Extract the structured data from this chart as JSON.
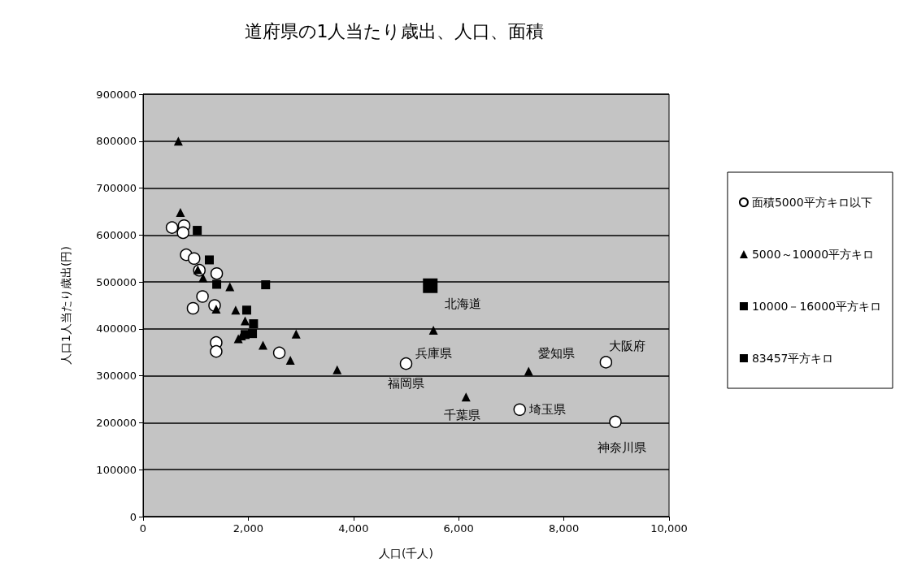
{
  "chart_data": {
    "type": "scatter",
    "title": "道府県の1人当たり歳出、人口、面積",
    "xlabel": "人口(千人)",
    "ylabel": "人口1人当たり歳出(円)",
    "xlim": [
      0,
      10000
    ],
    "xticks": [
      0,
      {
        "value": 2000,
        "label": "2,000"
      },
      {
        "value": 4000,
        "label": "4,000"
      },
      {
        "value": 6000,
        "label": "6,000"
      },
      {
        "value": 8000,
        "label": "8,000"
      },
      {
        "value": 10000,
        "label": "10,000"
      }
    ],
    "ylim": [
      0,
      900000
    ],
    "yticks": [
      0,
      100000,
      200000,
      300000,
      400000,
      500000,
      600000,
      700000,
      800000,
      900000
    ],
    "grid": "y",
    "legend": "right",
    "series": [
      {
        "name": "面積5000平方キロ以下",
        "color": "#ffffff",
        "marker": "circle",
        "x": [
          550,
          780,
          760,
          820,
          970,
          1070,
          1400,
          1390,
          1130,
          950,
          1360,
          1390,
          1390,
          2590,
          5000,
          8800,
          7160,
          8980
        ],
        "values": [
          616000,
          620000,
          605000,
          558000,
          550000,
          525000,
          518000,
          null,
          469000,
          444000,
          450000,
          371000,
          352000,
          349000,
          326000,
          329000,
          228000,
          202000
        ]
      },
      {
        "name": "5000～10000平方キロ",
        "color": "#000000",
        "marker": "triangle",
        "x": [
          670,
          710,
          1040,
          1140,
          1650,
          1390,
          1760,
          1940,
          1810,
          1870,
          2910,
          2280,
          2800,
          3690,
          5520,
          7330,
          6140
        ],
        "values": [
          800000,
          648000,
          526000,
          509000,
          490000,
          442000,
          440000,
          417000,
          379000,
          385000,
          389000,
          365000,
          333000,
          313000,
          397000,
          310000,
          255000
        ]
      },
      {
        "name": "10000－16000平方キロ",
        "color": "#000000",
        "marker": "square",
        "x": [
          1030,
          1260,
          1400,
          2330,
          1970,
          2100,
          2020,
          1940,
          2080
        ],
        "values": [
          610000,
          547000,
          495000,
          494000,
          440000,
          411000,
          null,
          388000,
          390000
        ]
      },
      {
        "name": "83457平方キロ",
        "color": "#000000",
        "marker": "square",
        "x": [
          5460
        ],
        "values": [
          492000
        ]
      }
    ],
    "annotations": [
      {
        "text": "北海道",
        "x": 5460,
        "y": 492000
      },
      {
        "text": "兵庫県",
        "x": 5520,
        "y": 397000
      },
      {
        "text": "福岡県",
        "x": 5000,
        "y": 326000
      },
      {
        "text": "愛知県",
        "x": 7330,
        "y": 310000
      },
      {
        "text": "大阪府",
        "x": 8800,
        "y": 329000
      },
      {
        "text": "千葉県",
        "x": 6140,
        "y": 255000
      },
      {
        "text": "埼玉県",
        "x": 7160,
        "y": 228000
      },
      {
        "text": "神奈川県",
        "x": 8980,
        "y": 202000
      }
    ]
  }
}
